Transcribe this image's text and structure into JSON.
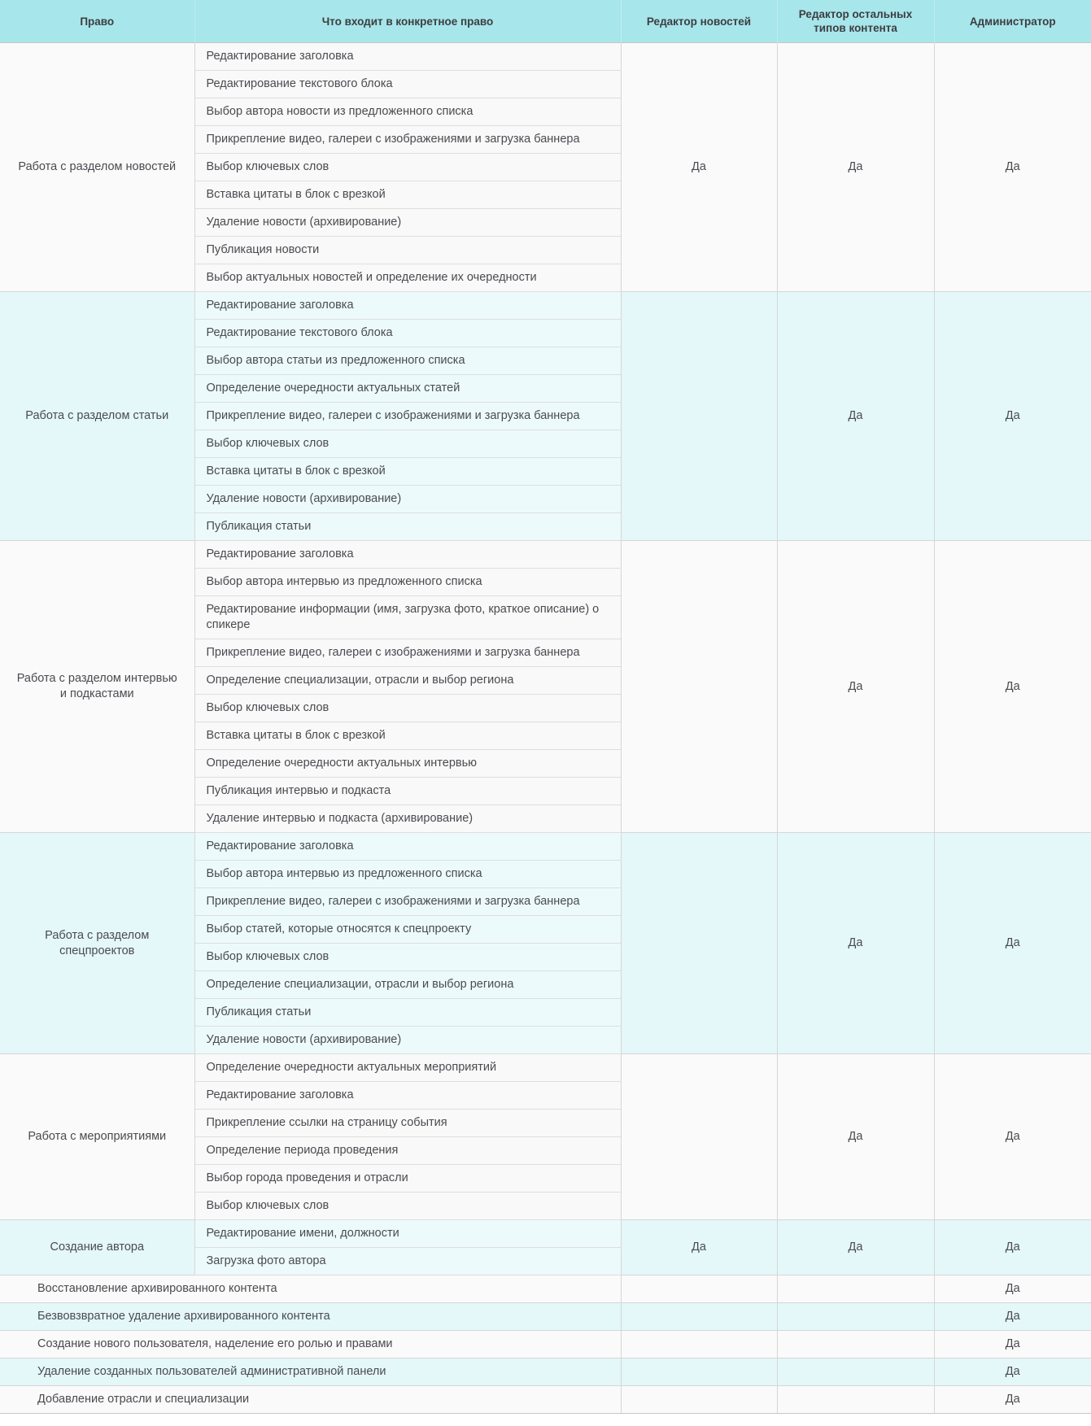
{
  "header": {
    "columns": [
      "Право",
      "Что входит в конкретное право",
      "Редактор новостей",
      "Редактор остальных типов контента",
      "Администратор"
    ]
  },
  "yes_label": "Да",
  "sections": [
    {
      "name": "Работа с разделом новостей",
      "tasks": [
        "Редактирование заголовка",
        "Редактирование текстового блока",
        "Выбор автора новости из предложенного списка",
        "Прикрепление видео, галереи с изображениями и загрузка баннера",
        "Выбор ключевых слов",
        "Вставка цитаты в блок с врезкой",
        "Удаление новости (архивирование)",
        "Публикация новости",
        "Выбор актуальных новостей и определение их очередности"
      ],
      "roles": [
        "Да",
        "Да",
        "Да"
      ]
    },
    {
      "name": "Работа с разделом статьи",
      "tasks": [
        "Редактирование заголовка",
        "Редактирование текстового блока",
        "Выбор автора статьи из предложенного списка",
        "Определение очередности актуальных статей",
        "Прикрепление видео, галереи с изображениями и загрузка баннера",
        "Выбор ключевых слов",
        "Вставка цитаты в блок с врезкой",
        "Удаление новости (архивирование)",
        "Публикация статьи"
      ],
      "roles": [
        "",
        "Да",
        "Да"
      ]
    },
    {
      "name": "Работа с разделом интервью и подкастами",
      "tasks": [
        "Редактирование заголовка",
        "Выбор автора интервью из предложенного списка",
        "Редактирование информации (имя, загрузка фото, краткое описание) о спикере",
        "Прикрепление видео, галереи с изображениями и загрузка баннера",
        "Определение специализации, отрасли и выбор региона",
        "Выбор ключевых слов",
        "Вставка цитаты в блок с врезкой",
        "Определение очередности актуальных интервью",
        "Публикация интервью и подкаста",
        "Удаление интервью и подкаста (архивирование)"
      ],
      "roles": [
        "",
        "Да",
        "Да"
      ]
    },
    {
      "name": "Работа с разделом спецпроектов",
      "tasks": [
        "Редактирование заголовка",
        "Выбор автора интервью из предложенного списка",
        "Прикрепление видео, галереи с изображениями и загрузка баннера",
        "Выбор статей, которые относятся к спецпроекту",
        "Выбор ключевых слов",
        "Определение специализации, отрасли и выбор региона",
        "Публикация статьи",
        "Удаление новости (архивирование)"
      ],
      "roles": [
        "",
        "Да",
        "Да"
      ]
    },
    {
      "name": "Работа с мероприятиями",
      "tasks": [
        "Определение очередности актуальных мероприятий",
        "Редактирование заголовка",
        "Прикрепление ссылки на страницу события",
        "Определение периода проведения",
        "Выбор города проведения и отрасли",
        "Выбор ключевых слов"
      ],
      "roles": [
        "",
        "Да",
        "Да"
      ]
    },
    {
      "name": "Создание автора",
      "tasks": [
        "Редактирование имени, должности",
        "Загрузка фото автора"
      ],
      "roles": [
        "Да",
        "Да",
        "Да"
      ]
    }
  ],
  "single_rows": [
    {
      "label": "Восстановление архивированного контента",
      "roles": [
        "",
        "",
        "Да"
      ]
    },
    {
      "label": "Безвовзвратное удаление архивированного контента",
      "roles": [
        "",
        "",
        "Да"
      ]
    },
    {
      "label": "Создание нового пользователя, наделение его ролью и правами",
      "roles": [
        "",
        "",
        "Да"
      ]
    },
    {
      "label": "Удаление созданных пользователей административной панели",
      "roles": [
        "",
        "",
        "Да"
      ]
    },
    {
      "label": "Добавление отрасли и специализации",
      "roles": [
        "",
        "",
        "Да"
      ]
    }
  ],
  "colors": {
    "header_bg": "#a7e6ea",
    "stripe_light": "#fafafa",
    "stripe_cyan": "#e4f7f9",
    "text": "#4a4b50"
  }
}
